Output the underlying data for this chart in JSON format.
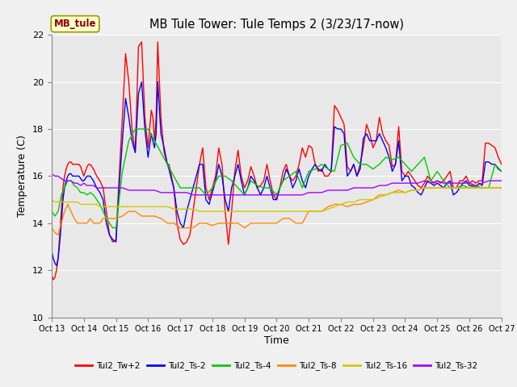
{
  "title": "MB Tule Tower: Tule Temps 2 (3/23/17-now)",
  "xlabel": "Time",
  "ylabel": "Temperature (C)",
  "xlim": [
    0,
    14
  ],
  "ylim": [
    10,
    22
  ],
  "yticks": [
    10,
    12,
    14,
    16,
    18,
    20,
    22
  ],
  "xtick_labels": [
    "Oct 13",
    "Oct 14",
    "Oct 15",
    "Oct 16",
    "Oct 17",
    "Oct 18",
    "Oct 19",
    "Oct 20",
    "Oct 21",
    "Oct 22",
    "Oct 23",
    "Oct 24",
    "Oct 25",
    "Oct 26",
    "Oct 27"
  ],
  "bg_color": "#e8e8e8",
  "grid_color": "#ffffff",
  "fig_color": "#f0f0f0",
  "station_label": "MB_tule",
  "series": {
    "Tul2_Tw+2": {
      "color": "#ff0000"
    },
    "Tul2_Ts-2": {
      "color": "#0000ff"
    },
    "Tul2_Ts-4": {
      "color": "#00cc00"
    },
    "Tul2_Ts-8": {
      "color": "#ff8800"
    },
    "Tul2_Ts-16": {
      "color": "#cccc00"
    },
    "Tul2_Ts-32": {
      "color": "#aa00ff"
    }
  },
  "series_order": [
    "Tul2_Tw+2",
    "Tul2_Ts-2",
    "Tul2_Ts-4",
    "Tul2_Ts-8",
    "Tul2_Ts-16",
    "Tul2_Ts-32"
  ],
  "Tul2_Tw+2_x": [
    0.0,
    0.05,
    0.1,
    0.15,
    0.2,
    0.25,
    0.3,
    0.35,
    0.4,
    0.45,
    0.5,
    0.55,
    0.6,
    0.65,
    0.7,
    0.75,
    0.8,
    0.85,
    0.9,
    0.95,
    1.0,
    1.05,
    1.1,
    1.15,
    1.2,
    1.3,
    1.4,
    1.5,
    1.6,
    1.7,
    1.8,
    1.9,
    2.0,
    2.1,
    2.2,
    2.3,
    2.4,
    2.5,
    2.6,
    2.7,
    2.8,
    2.9,
    3.0,
    3.1,
    3.15,
    3.2,
    3.25,
    3.3,
    3.4,
    3.5,
    3.6,
    3.65,
    3.7,
    3.8,
    3.9,
    4.0,
    4.1,
    4.2,
    4.3,
    4.4,
    4.5,
    4.6,
    4.7,
    4.8,
    4.9,
    5.0,
    5.1,
    5.2,
    5.3,
    5.4,
    5.5,
    5.6,
    5.7,
    5.8,
    5.9,
    6.0,
    6.1,
    6.2,
    6.3,
    6.4,
    6.5,
    6.6,
    6.7,
    6.8,
    6.9,
    7.0,
    7.1,
    7.2,
    7.3,
    7.4,
    7.5,
    7.6,
    7.7,
    7.8,
    7.9,
    8.0,
    8.1,
    8.2,
    8.3,
    8.4,
    8.5,
    8.6,
    8.7,
    8.8,
    8.9,
    9.0,
    9.1,
    9.2,
    9.3,
    9.4,
    9.5,
    9.6,
    9.7,
    9.8,
    9.9,
    10.0,
    10.1,
    10.2,
    10.3,
    10.4,
    10.5,
    10.6,
    10.7,
    10.8,
    10.9,
    11.0,
    11.1,
    11.2,
    11.3,
    11.4,
    11.5,
    11.6,
    11.7,
    11.8,
    11.9,
    12.0,
    12.1,
    12.2,
    12.3,
    12.4,
    12.5,
    12.6,
    12.7,
    12.8,
    12.9,
    13.0,
    13.1,
    13.2,
    13.3,
    13.4,
    13.5,
    13.6,
    13.7,
    13.8,
    13.9,
    14.0
  ],
  "Tul2_Tw+2_y": [
    11.8,
    11.6,
    11.7,
    12.0,
    12.5,
    13.5,
    14.5,
    15.5,
    16.0,
    16.3,
    16.5,
    16.6,
    16.6,
    16.5,
    16.5,
    16.5,
    16.5,
    16.5,
    16.4,
    16.2,
    16.0,
    16.2,
    16.4,
    16.5,
    16.5,
    16.3,
    16.0,
    15.8,
    15.5,
    14.5,
    13.5,
    13.2,
    13.3,
    16.0,
    18.5,
    21.2,
    20.0,
    18.0,
    17.0,
    21.5,
    21.7,
    18.5,
    17.2,
    18.8,
    18.5,
    17.5,
    18.5,
    21.7,
    18.5,
    17.0,
    16.5,
    16.5,
    16.2,
    15.5,
    14.0,
    13.3,
    13.1,
    13.2,
    13.5,
    14.5,
    15.5,
    16.5,
    17.2,
    15.5,
    15.0,
    15.5,
    16.0,
    17.2,
    16.5,
    14.5,
    13.1,
    14.5,
    16.2,
    17.1,
    16.0,
    15.5,
    15.8,
    16.4,
    16.0,
    15.5,
    15.6,
    15.8,
    16.5,
    15.8,
    15.2,
    15.0,
    15.5,
    16.2,
    16.5,
    16.0,
    15.8,
    16.0,
    16.5,
    17.2,
    16.8,
    17.3,
    17.2,
    16.5,
    16.2,
    16.3,
    16.0,
    16.0,
    16.2,
    19.0,
    18.8,
    18.5,
    18.2,
    16.4,
    16.2,
    16.5,
    16.0,
    16.5,
    17.2,
    18.2,
    17.8,
    17.2,
    17.5,
    18.5,
    17.8,
    17.5,
    17.3,
    16.4,
    16.5,
    18.1,
    16.2,
    16.0,
    16.2,
    16.0,
    15.8,
    15.6,
    15.5,
    15.7,
    16.0,
    15.8,
    15.7,
    15.8,
    15.7,
    15.8,
    16.0,
    16.2,
    15.5,
    15.5,
    15.8,
    15.8,
    16.0,
    15.7,
    15.8,
    15.7,
    15.8,
    15.8,
    17.4,
    17.4,
    17.3,
    17.2,
    16.8,
    16.5
  ],
  "Tul2_Ts-2_x": [
    0.0,
    0.05,
    0.1,
    0.15,
    0.2,
    0.25,
    0.3,
    0.35,
    0.4,
    0.45,
    0.5,
    0.55,
    0.6,
    0.65,
    0.7,
    0.75,
    0.8,
    0.85,
    0.9,
    0.95,
    1.0,
    1.05,
    1.1,
    1.15,
    1.2,
    1.3,
    1.4,
    1.5,
    1.6,
    1.7,
    1.8,
    1.9,
    2.0,
    2.1,
    2.2,
    2.3,
    2.4,
    2.5,
    2.6,
    2.7,
    2.8,
    2.9,
    3.0,
    3.1,
    3.15,
    3.2,
    3.25,
    3.3,
    3.4,
    3.5,
    3.6,
    3.65,
    3.7,
    3.8,
    3.9,
    4.0,
    4.1,
    4.2,
    4.3,
    4.4,
    4.5,
    4.6,
    4.7,
    4.8,
    4.9,
    5.0,
    5.1,
    5.2,
    5.3,
    5.4,
    5.5,
    5.6,
    5.7,
    5.8,
    5.9,
    6.0,
    6.1,
    6.2,
    6.3,
    6.4,
    6.5,
    6.6,
    6.7,
    6.8,
    6.9,
    7.0,
    7.1,
    7.2,
    7.3,
    7.4,
    7.5,
    7.6,
    7.7,
    7.8,
    7.9,
    8.0,
    8.1,
    8.2,
    8.3,
    8.4,
    8.5,
    8.6,
    8.7,
    8.8,
    8.9,
    9.0,
    9.1,
    9.2,
    9.3,
    9.4,
    9.5,
    9.6,
    9.7,
    9.8,
    9.9,
    10.0,
    10.1,
    10.2,
    10.3,
    10.4,
    10.5,
    10.6,
    10.7,
    10.8,
    10.9,
    11.0,
    11.1,
    11.2,
    11.3,
    11.4,
    11.5,
    11.6,
    11.7,
    11.8,
    11.9,
    12.0,
    12.1,
    12.2,
    12.3,
    12.4,
    12.5,
    12.6,
    12.7,
    12.8,
    12.9,
    13.0,
    13.1,
    13.2,
    13.3,
    13.4,
    13.5,
    13.6,
    13.7,
    13.8,
    13.9,
    14.0
  ],
  "Tul2_Ts-2_y": [
    12.8,
    12.5,
    12.3,
    12.2,
    12.5,
    13.2,
    14.0,
    15.0,
    15.5,
    15.8,
    16.0,
    16.1,
    16.1,
    16.0,
    16.0,
    16.0,
    16.0,
    16.0,
    15.9,
    15.8,
    15.8,
    15.9,
    16.0,
    16.0,
    16.0,
    15.8,
    15.5,
    15.3,
    15.0,
    14.0,
    13.5,
    13.3,
    13.2,
    15.5,
    17.5,
    19.3,
    18.5,
    17.5,
    17.0,
    19.5,
    20.0,
    18.0,
    16.8,
    17.8,
    17.5,
    17.2,
    17.8,
    20.0,
    17.8,
    17.2,
    16.5,
    16.3,
    16.0,
    15.5,
    14.5,
    14.0,
    13.8,
    14.5,
    15.0,
    15.5,
    16.0,
    16.5,
    16.5,
    15.0,
    14.8,
    15.3,
    15.8,
    16.5,
    16.0,
    15.0,
    14.5,
    15.5,
    16.0,
    16.5,
    15.8,
    15.2,
    15.5,
    16.0,
    15.8,
    15.5,
    15.2,
    15.5,
    16.0,
    15.5,
    15.0,
    15.0,
    15.5,
    15.8,
    16.3,
    16.0,
    15.5,
    15.8,
    16.3,
    15.8,
    15.5,
    16.0,
    16.3,
    16.5,
    16.3,
    16.2,
    16.5,
    16.3,
    16.2,
    18.1,
    18.0,
    18.0,
    17.8,
    16.0,
    16.2,
    16.5,
    16.0,
    16.3,
    17.6,
    17.8,
    17.5,
    17.5,
    17.5,
    17.8,
    17.5,
    17.2,
    16.8,
    16.2,
    16.5,
    17.5,
    15.8,
    16.0,
    16.0,
    15.6,
    15.5,
    15.3,
    15.2,
    15.5,
    15.8,
    15.7,
    15.6,
    15.7,
    15.6,
    15.5,
    15.7,
    15.8,
    15.2,
    15.3,
    15.5,
    15.7,
    15.8,
    15.6,
    15.6,
    15.5,
    15.7,
    15.6,
    16.6,
    16.6,
    16.5,
    16.5,
    16.3,
    16.2
  ],
  "Tul2_Ts-4_x": [
    0.0,
    0.1,
    0.2,
    0.3,
    0.4,
    0.5,
    0.6,
    0.7,
    0.8,
    0.9,
    1.0,
    1.1,
    1.2,
    1.3,
    1.4,
    1.5,
    1.6,
    1.7,
    1.8,
    1.9,
    2.0,
    2.2,
    2.4,
    2.6,
    2.8,
    3.0,
    3.2,
    3.4,
    3.6,
    3.8,
    4.0,
    4.2,
    4.4,
    4.6,
    4.8,
    5.0,
    5.2,
    5.4,
    5.6,
    5.8,
    6.0,
    6.2,
    6.4,
    6.6,
    6.8,
    7.0,
    7.2,
    7.4,
    7.6,
    7.8,
    8.0,
    8.2,
    8.4,
    8.6,
    8.8,
    9.0,
    9.2,
    9.4,
    9.6,
    9.8,
    10.0,
    10.2,
    10.4,
    10.6,
    10.8,
    11.0,
    11.2,
    11.4,
    11.6,
    11.8,
    12.0,
    12.2,
    12.4,
    12.6,
    12.8,
    13.0,
    13.2,
    13.4,
    13.6,
    13.8,
    14.0
  ],
  "Tul2_Ts-4_y": [
    14.5,
    14.3,
    14.5,
    15.2,
    15.5,
    15.8,
    15.8,
    15.6,
    15.5,
    15.3,
    15.3,
    15.2,
    15.3,
    15.2,
    15.0,
    14.8,
    14.5,
    14.2,
    14.0,
    13.8,
    13.8,
    16.2,
    17.5,
    18.0,
    18.0,
    18.0,
    17.5,
    17.0,
    16.5,
    16.0,
    15.5,
    15.5,
    15.5,
    15.5,
    15.2,
    15.5,
    16.0,
    16.0,
    15.8,
    15.5,
    15.2,
    15.8,
    15.6,
    15.5,
    15.5,
    15.2,
    15.8,
    16.0,
    16.2,
    15.5,
    16.2,
    16.3,
    16.5,
    16.3,
    16.2,
    17.3,
    17.4,
    16.8,
    16.5,
    16.5,
    16.3,
    16.5,
    16.8,
    16.7,
    16.8,
    16.5,
    16.2,
    16.5,
    16.8,
    15.8,
    16.2,
    15.8,
    15.5,
    15.5,
    15.6,
    15.5,
    15.6,
    15.5,
    15.5,
    16.5,
    16.2
  ],
  "Tul2_Ts-8_x": [
    0.0,
    0.1,
    0.2,
    0.3,
    0.4,
    0.5,
    0.6,
    0.7,
    0.8,
    0.9,
    1.0,
    1.1,
    1.2,
    1.3,
    1.4,
    1.5,
    1.6,
    1.7,
    1.8,
    1.9,
    2.0,
    2.2,
    2.4,
    2.6,
    2.8,
    3.0,
    3.2,
    3.4,
    3.6,
    3.8,
    4.0,
    4.2,
    4.4,
    4.6,
    4.8,
    5.0,
    5.2,
    5.4,
    5.6,
    5.8,
    6.0,
    6.2,
    6.4,
    6.6,
    6.8,
    7.0,
    7.2,
    7.4,
    7.6,
    7.8,
    8.0,
    8.2,
    8.4,
    8.6,
    8.8,
    9.0,
    9.2,
    9.4,
    9.6,
    9.8,
    10.0,
    10.2,
    10.4,
    10.6,
    10.8,
    11.0,
    11.2,
    11.4,
    11.6,
    11.8,
    12.0,
    12.2,
    12.4,
    12.6,
    12.8,
    13.0,
    13.2,
    13.4,
    13.6,
    13.8,
    14.0
  ],
  "Tul2_Ts-8_y": [
    13.8,
    13.6,
    13.5,
    14.0,
    14.5,
    14.8,
    14.5,
    14.2,
    14.0,
    14.0,
    14.0,
    14.0,
    14.2,
    14.0,
    14.0,
    14.0,
    14.2,
    14.2,
    14.2,
    14.2,
    14.2,
    14.3,
    14.5,
    14.5,
    14.3,
    14.3,
    14.3,
    14.2,
    14.0,
    14.0,
    13.8,
    13.8,
    13.8,
    14.0,
    14.0,
    13.9,
    14.0,
    14.0,
    14.0,
    14.0,
    13.8,
    14.0,
    14.0,
    14.0,
    14.0,
    14.0,
    14.2,
    14.2,
    14.0,
    14.0,
    14.5,
    14.5,
    14.5,
    14.7,
    14.8,
    14.8,
    14.7,
    14.8,
    14.8,
    14.9,
    15.0,
    15.2,
    15.2,
    15.3,
    15.4,
    15.3,
    15.4,
    15.4,
    15.5,
    15.5,
    15.5,
    15.5,
    15.5,
    15.5,
    15.5,
    15.5,
    15.5,
    15.5,
    15.5,
    15.5,
    15.5
  ],
  "Tul2_Ts-16_x": [
    0.0,
    0.1,
    0.2,
    0.3,
    0.4,
    0.5,
    0.6,
    0.7,
    0.8,
    0.9,
    1.0,
    1.1,
    1.2,
    1.3,
    1.4,
    1.5,
    1.6,
    1.7,
    1.8,
    1.9,
    2.0,
    2.2,
    2.4,
    2.6,
    2.8,
    3.0,
    3.2,
    3.4,
    3.6,
    3.8,
    4.0,
    4.2,
    4.4,
    4.6,
    4.8,
    5.0,
    5.2,
    5.4,
    5.6,
    5.8,
    6.0,
    6.2,
    6.4,
    6.6,
    6.8,
    7.0,
    7.2,
    7.4,
    7.6,
    7.8,
    8.0,
    8.2,
    8.4,
    8.6,
    8.8,
    9.0,
    9.2,
    9.4,
    9.6,
    9.8,
    10.0,
    10.2,
    10.4,
    10.6,
    10.8,
    11.0,
    11.2,
    11.4,
    11.6,
    11.8,
    12.0,
    12.2,
    12.4,
    12.6,
    12.8,
    13.0,
    13.2,
    13.4,
    13.6,
    13.8,
    14.0
  ],
  "Tul2_Ts-16_y": [
    15.0,
    14.9,
    14.9,
    14.9,
    14.9,
    14.9,
    14.9,
    14.9,
    14.9,
    14.8,
    14.8,
    14.8,
    14.8,
    14.8,
    14.8,
    14.7,
    14.7,
    14.7,
    14.7,
    14.7,
    14.7,
    14.7,
    14.7,
    14.7,
    14.7,
    14.7,
    14.7,
    14.7,
    14.7,
    14.6,
    14.6,
    14.6,
    14.6,
    14.5,
    14.5,
    14.5,
    14.5,
    14.5,
    14.5,
    14.5,
    14.5,
    14.5,
    14.5,
    14.5,
    14.5,
    14.5,
    14.5,
    14.5,
    14.5,
    14.5,
    14.5,
    14.5,
    14.5,
    14.6,
    14.7,
    14.8,
    14.9,
    14.9,
    15.0,
    15.0,
    15.0,
    15.1,
    15.2,
    15.3,
    15.3,
    15.3,
    15.4,
    15.4,
    15.5,
    15.5,
    15.5,
    15.5,
    15.5,
    15.5,
    15.5,
    15.5,
    15.5,
    15.5,
    15.5,
    15.5,
    15.5
  ],
  "Tul2_Ts-32_x": [
    0.0,
    0.1,
    0.2,
    0.3,
    0.4,
    0.5,
    0.6,
    0.7,
    0.8,
    0.9,
    1.0,
    1.1,
    1.2,
    1.3,
    1.4,
    1.5,
    1.6,
    1.7,
    1.8,
    1.9,
    2.0,
    2.2,
    2.4,
    2.6,
    2.8,
    3.0,
    3.2,
    3.4,
    3.6,
    3.8,
    4.0,
    4.2,
    4.4,
    4.6,
    4.8,
    5.0,
    5.2,
    5.4,
    5.6,
    5.8,
    6.0,
    6.2,
    6.4,
    6.6,
    6.8,
    7.0,
    7.2,
    7.4,
    7.6,
    7.8,
    8.0,
    8.2,
    8.4,
    8.6,
    8.8,
    9.0,
    9.2,
    9.4,
    9.6,
    9.8,
    10.0,
    10.2,
    10.4,
    10.6,
    10.8,
    11.0,
    11.2,
    11.4,
    11.6,
    11.8,
    12.0,
    12.2,
    12.4,
    12.6,
    12.8,
    13.0,
    13.2,
    13.4,
    13.6,
    13.8,
    14.0
  ],
  "Tul2_Ts-32_y": [
    16.1,
    16.0,
    16.0,
    15.9,
    15.8,
    15.8,
    15.8,
    15.7,
    15.7,
    15.6,
    15.7,
    15.6,
    15.6,
    15.6,
    15.5,
    15.5,
    15.5,
    15.5,
    15.5,
    15.5,
    15.5,
    15.5,
    15.4,
    15.4,
    15.4,
    15.4,
    15.4,
    15.3,
    15.3,
    15.3,
    15.3,
    15.3,
    15.2,
    15.2,
    15.2,
    15.2,
    15.2,
    15.2,
    15.2,
    15.2,
    15.2,
    15.2,
    15.2,
    15.2,
    15.2,
    15.2,
    15.2,
    15.2,
    15.2,
    15.2,
    15.3,
    15.3,
    15.3,
    15.4,
    15.4,
    15.4,
    15.4,
    15.5,
    15.5,
    15.5,
    15.5,
    15.6,
    15.6,
    15.7,
    15.7,
    15.7,
    15.7,
    15.7,
    15.8,
    15.7,
    15.8,
    15.7,
    15.7,
    15.7,
    15.7,
    15.7,
    15.6,
    15.7,
    15.8,
    15.8,
    15.8
  ]
}
